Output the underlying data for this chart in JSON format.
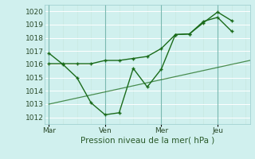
{
  "xlabel": "Pression niveau de la mer( hPa )",
  "ylim": [
    1011.5,
    1020.5
  ],
  "xlim": [
    -0.15,
    7.15
  ],
  "bg_color": "#d0f0ee",
  "grid_color_h": "#ffffff",
  "grid_color_v": "#c8e8e0",
  "vline_color": "#7ab8b0",
  "line_color": "#1a6b1a",
  "xtick_labels": [
    "Mar",
    "Ven",
    "Mer",
    "Jeu"
  ],
  "xtick_positions": [
    0,
    2,
    4,
    6
  ],
  "ytick_values": [
    1012,
    1013,
    1014,
    1015,
    1016,
    1017,
    1018,
    1019,
    1020
  ],
  "line1_x": [
    0,
    0.5,
    1.0,
    1.5,
    2.0,
    2.5,
    3.0,
    3.5,
    4.0,
    4.5,
    5.0,
    5.5,
    6.0,
    6.5
  ],
  "line1_y": [
    1016.85,
    1016.0,
    1015.0,
    1013.1,
    1012.2,
    1012.35,
    1015.7,
    1014.3,
    1015.65,
    1018.25,
    1018.3,
    1019.15,
    1019.95,
    1019.3
  ],
  "line2_x": [
    0,
    0.5,
    1.0,
    1.5,
    2.0,
    2.5,
    3.0,
    3.5,
    4.0,
    4.5,
    5.0,
    5.5,
    6.0,
    6.5
  ],
  "line2_y": [
    1016.05,
    1016.05,
    1016.05,
    1016.05,
    1016.3,
    1016.3,
    1016.45,
    1016.6,
    1017.2,
    1018.25,
    1018.3,
    1019.25,
    1019.55,
    1018.5
  ],
  "line3_x": [
    0,
    7.15
  ],
  "line3_y": [
    1013.0,
    1016.3
  ],
  "vline_positions": [
    0,
    2,
    4,
    6
  ],
  "minor_vline_step": 0.5,
  "figsize": [
    3.2,
    2.0
  ],
  "dpi": 100
}
